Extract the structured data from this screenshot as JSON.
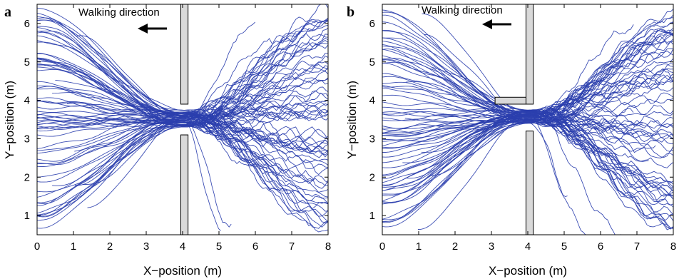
{
  "chart_data": [
    {
      "type": "line",
      "panel": "a",
      "title": "",
      "xlabel": "X−position (m)",
      "ylabel": "Y−position (m)",
      "xlim": [
        0,
        8
      ],
      "ylim": [
        0.5,
        6.5
      ],
      "xticks": [
        "0",
        "1",
        "2",
        "3",
        "4",
        "5",
        "6",
        "7",
        "8"
      ],
      "yticks": [
        "1",
        "2",
        "3",
        "4",
        "5",
        "6"
      ],
      "annotation": "Walking direction",
      "arrow_direction": "left",
      "grid": false,
      "bottleneck": {
        "x": [
          3.95,
          4.15
        ],
        "gap": [
          3.1,
          3.9
        ]
      },
      "trajectory_count": 80,
      "color": "#2b3fae"
    },
    {
      "type": "line",
      "panel": "b",
      "title": "",
      "xlabel": "X−position (m)",
      "ylabel": "Y−position (m)",
      "xlim": [
        0,
        8
      ],
      "ylim": [
        0.5,
        6.5
      ],
      "xticks": [
        "0",
        "1",
        "2",
        "3",
        "4",
        "5",
        "6",
        "7",
        "8"
      ],
      "yticks": [
        "1",
        "2",
        "3",
        "4",
        "5",
        "6"
      ],
      "annotation": "Walking direction",
      "arrow_direction": "left",
      "grid": false,
      "bottleneck": {
        "x": [
          3.95,
          4.15
        ],
        "gap": [
          3.2,
          3.9
        ],
        "corridor_wall_x": [
          3.1,
          3.95
        ]
      },
      "trajectory_count": 80,
      "color": "#2b3fae"
    }
  ]
}
